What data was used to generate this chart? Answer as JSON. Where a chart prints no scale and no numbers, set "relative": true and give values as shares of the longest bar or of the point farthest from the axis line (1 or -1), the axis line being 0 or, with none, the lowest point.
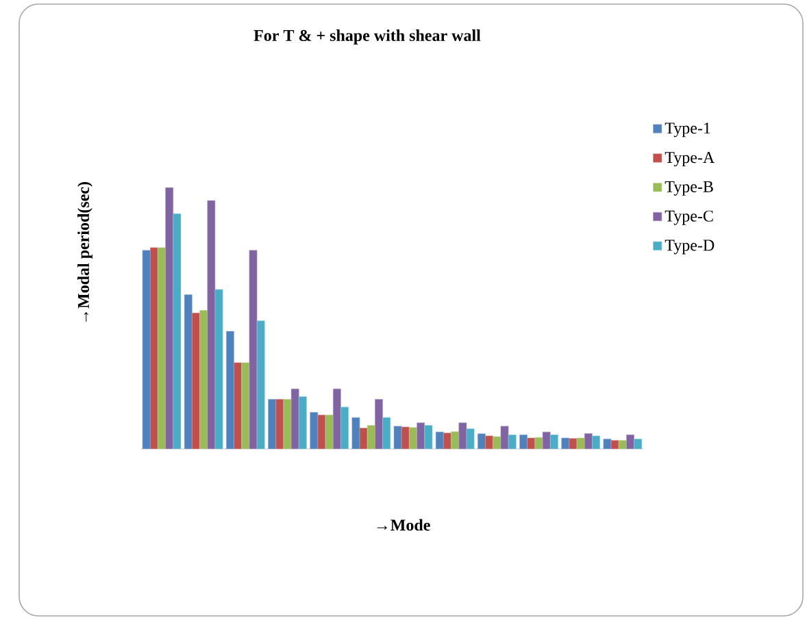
{
  "chart_data": {
    "type": "bar",
    "title": "For T & + shape with shear wall",
    "xlabel": "→Mode",
    "ylabel": "→Modal period(sec)",
    "relative": true,
    "legend": "right",
    "categories": [
      null,
      null,
      null,
      null,
      null,
      null,
      null,
      null,
      null,
      null,
      null,
      null
    ],
    "series": [
      {
        "name": "Type-1",
        "color": "#4f81bd",
        "values": [
          0.76,
          0.59,
          0.45,
          0.19,
          0.14,
          0.12,
          0.087,
          0.065,
          0.058,
          0.054,
          0.042,
          0.038
        ]
      },
      {
        "name": "Type-A",
        "color": "#c0504d",
        "values": [
          0.77,
          0.52,
          0.33,
          0.19,
          0.13,
          0.08,
          0.084,
          0.061,
          0.05,
          0.042,
          0.04,
          0.033
        ]
      },
      {
        "name": "Type-B",
        "color": "#9bbb59",
        "values": [
          0.77,
          0.53,
          0.33,
          0.19,
          0.13,
          0.09,
          0.082,
          0.066,
          0.047,
          0.044,
          0.042,
          0.033
        ]
      },
      {
        "name": "Type-C",
        "color": "#8064a2",
        "values": [
          1,
          0.95,
          0.76,
          0.23,
          0.23,
          0.19,
          0.1,
          0.1,
          0.087,
          0.065,
          0.059,
          0.054
        ]
      },
      {
        "name": "Type-D",
        "color": "#4bacc6",
        "values": [
          0.9,
          0.61,
          0.49,
          0.2,
          0.16,
          0.12,
          0.09,
          0.077,
          0.054,
          0.054,
          0.05,
          0.038
        ]
      }
    ]
  }
}
